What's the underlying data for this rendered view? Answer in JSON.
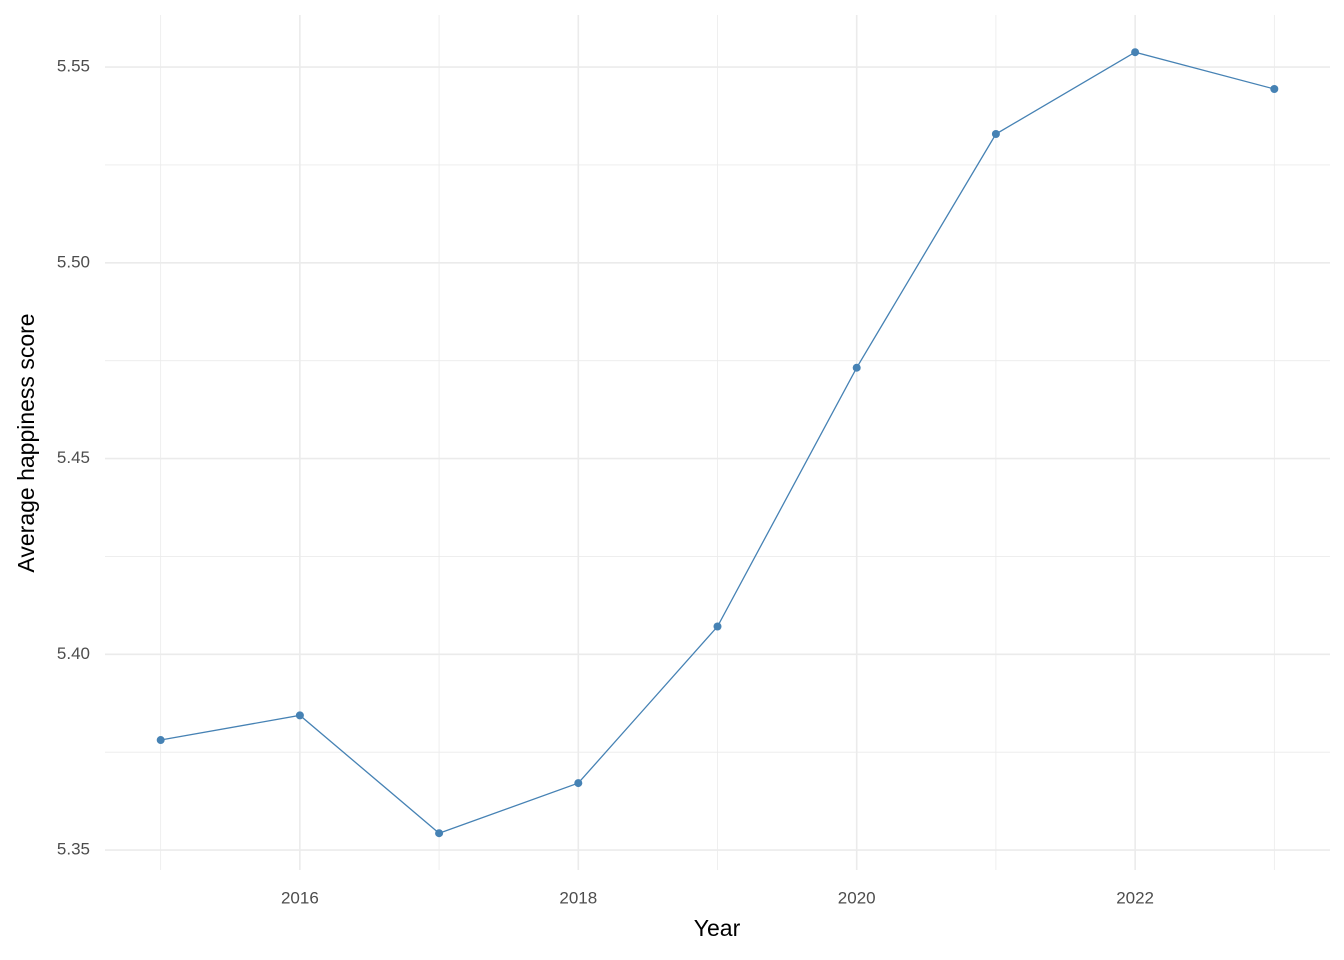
{
  "chart_data": {
    "type": "line",
    "x_label": "Year",
    "y_label": "Average happiness score",
    "x": [
      2015,
      2016,
      2017,
      2018,
      2019,
      2020,
      2021,
      2022,
      2023
    ],
    "series": [
      {
        "name": "Average happiness score",
        "color": "#4682b4",
        "values": [
          5.3781,
          5.3844,
          5.3543,
          5.3671,
          5.4071,
          5.4732,
          5.5329,
          5.5538,
          5.5444
        ]
      }
    ],
    "xlim": [
      2014.6,
      2023.4
    ],
    "xticks": [
      2016,
      2018,
      2020,
      2022
    ],
    "x_minor_grid": [
      2015,
      2017,
      2019,
      2021,
      2023
    ],
    "ylim": [
      5.3449,
      5.5633
    ],
    "yticks": [
      5.35,
      {
        "value": 5.4,
        "label": "5.40"
      },
      5.45,
      {
        "value": 5.5,
        "label": "5.50"
      },
      5.55
    ],
    "y_minor_grid": [
      5.375,
      5.425,
      5.475,
      5.525
    ],
    "grid": true,
    "markers": true
  }
}
